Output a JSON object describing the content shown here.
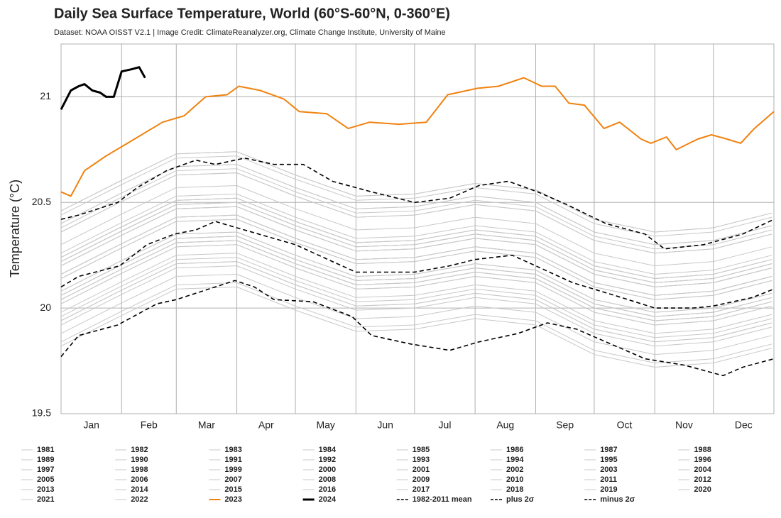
{
  "chart_data": {
    "type": "line",
    "title": "Daily Sea Surface Temperature, World (60°S-60°N, 0-360°E)",
    "subtitle": "Dataset: NOAA OISST V2.1 | Image Credit: ClimateReanalyzer.org, Climate Change Institute, University of Maine",
    "y_label": "Temperature (°C)",
    "xlim": [
      1,
      366
    ],
    "ylim": [
      19.5,
      21.25
    ],
    "yticks": [
      19.5,
      20,
      20.5,
      21
    ],
    "xticks": [
      {
        "value": 16.5,
        "label": "Jan"
      },
      {
        "value": 46,
        "label": "Feb"
      },
      {
        "value": 75.5,
        "label": "Mar"
      },
      {
        "value": 106,
        "label": "Apr"
      },
      {
        "value": 136.5,
        "label": "May"
      },
      {
        "value": 167,
        "label": "Jun"
      },
      {
        "value": 197.5,
        "label": "Jul"
      },
      {
        "value": 228.5,
        "label": "Aug"
      },
      {
        "value": 259,
        "label": "Sep"
      },
      {
        "value": 289.5,
        "label": "Oct"
      },
      {
        "value": 320,
        "label": "Nov"
      },
      {
        "value": 350.5,
        "label": "Dec"
      }
    ],
    "xgrid": [
      32,
      60,
      91,
      121,
      152,
      182,
      213,
      244,
      274,
      305,
      335
    ],
    "grid": true,
    "x": [
      1,
      31,
      60,
      91,
      121,
      152,
      182,
      213,
      244,
      274,
      305,
      335,
      365
    ],
    "series": [
      {
        "name": "1981",
        "color": "#c8c8c8",
        "values": [
          19.88,
          20.02,
          20.15,
          20.16,
          20.05,
          19.95,
          19.96,
          20.01,
          19.98,
          19.84,
          19.78,
          19.8,
          19.87
        ]
      },
      {
        "name": "1982",
        "color": "#c8c8c8",
        "values": [
          19.92,
          20.06,
          20.19,
          20.2,
          20.09,
          19.99,
          20.0,
          20.05,
          20.02,
          19.88,
          19.82,
          19.84,
          19.91
        ]
      },
      {
        "name": "1983",
        "color": "#c8c8c8",
        "values": [
          20.02,
          20.16,
          20.29,
          20.3,
          20.19,
          20.09,
          20.1,
          20.15,
          20.12,
          19.98,
          19.92,
          19.94,
          20.01
        ]
      },
      {
        "name": "1984",
        "color": "#c8c8c8",
        "values": [
          19.84,
          19.98,
          20.11,
          20.12,
          20.01,
          19.91,
          19.92,
          19.97,
          19.94,
          19.8,
          19.74,
          19.76,
          19.83
        ]
      },
      {
        "name": "1985",
        "color": "#c8c8c8",
        "values": [
          19.82,
          19.96,
          20.09,
          20.1,
          19.99,
          19.89,
          19.9,
          19.95,
          19.92,
          19.78,
          19.72,
          19.74,
          19.81
        ]
      },
      {
        "name": "1986",
        "color": "#c8c8c8",
        "values": [
          19.94,
          20.08,
          20.21,
          20.22,
          20.11,
          20.01,
          20.02,
          20.07,
          20.04,
          19.9,
          19.84,
          19.86,
          19.93
        ]
      },
      {
        "name": "1987",
        "color": "#c8c8c8",
        "values": [
          20.08,
          20.22,
          20.35,
          20.36,
          20.25,
          20.15,
          20.16,
          20.21,
          20.18,
          20.04,
          19.98,
          20.0,
          20.07
        ]
      },
      {
        "name": "1988",
        "color": "#c8c8c8",
        "values": [
          20.04,
          20.18,
          20.31,
          20.32,
          20.21,
          20.11,
          20.12,
          20.17,
          20.14,
          20.0,
          19.94,
          19.96,
          20.03
        ]
      },
      {
        "name": "1989",
        "color": "#c8c8c8",
        "values": [
          19.94,
          20.08,
          20.21,
          20.22,
          20.11,
          20.01,
          20.02,
          20.07,
          20.04,
          19.9,
          19.84,
          19.86,
          19.93
        ]
      },
      {
        "name": "1990",
        "color": "#c8c8c8",
        "values": [
          20.04,
          20.18,
          20.31,
          20.32,
          20.21,
          20.11,
          20.12,
          20.17,
          20.14,
          20.0,
          19.94,
          19.96,
          20.03
        ]
      },
      {
        "name": "1991",
        "color": "#c8c8c8",
        "values": [
          20.06,
          20.2,
          20.33,
          20.34,
          20.23,
          20.13,
          20.14,
          20.19,
          20.16,
          20.02,
          19.96,
          19.98,
          20.05
        ]
      },
      {
        "name": "1992",
        "color": "#c8c8c8",
        "values": [
          19.96,
          20.1,
          20.23,
          20.24,
          20.13,
          20.03,
          20.04,
          20.09,
          20.06,
          19.92,
          19.86,
          19.88,
          19.95
        ]
      },
      {
        "name": "1993",
        "color": "#c8c8c8",
        "values": [
          19.98,
          20.12,
          20.25,
          20.26,
          20.15,
          20.05,
          20.06,
          20.11,
          20.08,
          19.94,
          19.88,
          19.9,
          19.97
        ]
      },
      {
        "name": "1994",
        "color": "#c8c8c8",
        "values": [
          20.04,
          20.18,
          20.31,
          20.32,
          20.21,
          20.11,
          20.12,
          20.17,
          20.14,
          20.0,
          19.94,
          19.96,
          20.03
        ]
      },
      {
        "name": "1995",
        "color": "#c8c8c8",
        "values": [
          20.06,
          20.2,
          20.33,
          20.34,
          20.23,
          20.13,
          20.14,
          20.19,
          20.16,
          20.02,
          19.96,
          19.98,
          20.05
        ]
      },
      {
        "name": "1996",
        "color": "#c8c8c8",
        "values": [
          20.02,
          20.16,
          20.29,
          20.3,
          20.19,
          20.09,
          20.1,
          20.15,
          20.12,
          19.98,
          19.92,
          19.94,
          20.01
        ]
      },
      {
        "name": "1997",
        "color": "#c8c8c8",
        "values": [
          20.16,
          20.3,
          20.43,
          20.44,
          20.33,
          20.23,
          20.24,
          20.29,
          20.26,
          20.12,
          20.06,
          20.08,
          20.15
        ]
      },
      {
        "name": "1998",
        "color": "#c8c8c8",
        "values": [
          20.22,
          20.36,
          20.49,
          20.5,
          20.39,
          20.29,
          20.3,
          20.35,
          20.32,
          20.18,
          20.12,
          20.14,
          20.21
        ]
      },
      {
        "name": "1999",
        "color": "#c8c8c8",
        "values": [
          20.06,
          20.2,
          20.33,
          20.34,
          20.23,
          20.13,
          20.14,
          20.19,
          20.16,
          20.02,
          19.96,
          19.98,
          20.05
        ]
      },
      {
        "name": "2000",
        "color": "#c8c8c8",
        "values": [
          20.08,
          20.22,
          20.35,
          20.36,
          20.25,
          20.15,
          20.16,
          20.21,
          20.18,
          20.04,
          19.98,
          20.0,
          20.07
        ]
      },
      {
        "name": "2001",
        "color": "#c8c8c8",
        "values": [
          20.16,
          20.3,
          20.43,
          20.44,
          20.33,
          20.23,
          20.24,
          20.29,
          20.26,
          20.12,
          20.06,
          20.08,
          20.15
        ]
      },
      {
        "name": "2002",
        "color": "#c8c8c8",
        "values": [
          20.2,
          20.34,
          20.47,
          20.48,
          20.37,
          20.27,
          20.28,
          20.33,
          20.3,
          20.16,
          20.1,
          20.12,
          20.19
        ]
      },
      {
        "name": "2003",
        "color": "#c8c8c8",
        "values": [
          20.22,
          20.36,
          20.49,
          20.5,
          20.39,
          20.29,
          20.3,
          20.35,
          20.32,
          20.18,
          20.12,
          20.14,
          20.21
        ]
      },
      {
        "name": "2004",
        "color": "#c8c8c8",
        "values": [
          20.2,
          20.34,
          20.47,
          20.48,
          20.37,
          20.27,
          20.28,
          20.33,
          20.3,
          20.16,
          20.1,
          20.12,
          20.19
        ]
      },
      {
        "name": "2005",
        "color": "#c8c8c8",
        "values": [
          20.24,
          20.38,
          20.51,
          20.52,
          20.41,
          20.31,
          20.32,
          20.37,
          20.34,
          20.2,
          20.14,
          20.16,
          20.23
        ]
      },
      {
        "name": "2006",
        "color": "#c8c8c8",
        "values": [
          20.2,
          20.34,
          20.47,
          20.48,
          20.37,
          20.27,
          20.28,
          20.33,
          20.3,
          20.16,
          20.1,
          20.12,
          20.19
        ]
      },
      {
        "name": "2007",
        "color": "#c8c8c8",
        "values": [
          20.14,
          20.28,
          20.41,
          20.42,
          20.31,
          20.21,
          20.22,
          20.27,
          20.24,
          20.1,
          20.04,
          20.06,
          20.13
        ]
      },
      {
        "name": "2008",
        "color": "#c8c8c8",
        "values": [
          20.14,
          20.28,
          20.41,
          20.42,
          20.31,
          20.21,
          20.22,
          20.27,
          20.24,
          20.1,
          20.04,
          20.06,
          20.13
        ]
      },
      {
        "name": "2009",
        "color": "#c8c8c8",
        "values": [
          20.24,
          20.38,
          20.51,
          20.52,
          20.41,
          20.31,
          20.32,
          20.37,
          20.34,
          20.2,
          20.14,
          20.16,
          20.23
        ]
      },
      {
        "name": "2010",
        "color": "#c8c8c8",
        "values": [
          20.26,
          20.4,
          20.53,
          20.54,
          20.43,
          20.33,
          20.34,
          20.39,
          20.36,
          20.22,
          20.16,
          20.18,
          20.25
        ]
      },
      {
        "name": "2011",
        "color": "#c8c8c8",
        "values": [
          20.16,
          20.3,
          20.43,
          20.44,
          20.33,
          20.23,
          20.24,
          20.29,
          20.26,
          20.12,
          20.06,
          20.08,
          20.15
        ]
      },
      {
        "name": "2012",
        "color": "#c8c8c8",
        "values": [
          20.22,
          20.36,
          20.49,
          20.5,
          20.39,
          20.29,
          20.3,
          20.35,
          20.32,
          20.18,
          20.12,
          20.14,
          20.21
        ]
      },
      {
        "name": "2013",
        "color": "#c8c8c8",
        "values": [
          20.24,
          20.38,
          20.51,
          20.52,
          20.41,
          20.31,
          20.32,
          20.37,
          20.34,
          20.2,
          20.14,
          20.16,
          20.23
        ]
      },
      {
        "name": "2014",
        "color": "#c8c8c8",
        "values": [
          20.3,
          20.44,
          20.57,
          20.58,
          20.47,
          20.37,
          20.38,
          20.43,
          20.4,
          20.26,
          20.2,
          20.22,
          20.29
        ]
      },
      {
        "name": "2015",
        "color": "#c8c8c8",
        "values": [
          20.4,
          20.54,
          20.67,
          20.68,
          20.57,
          20.47,
          20.48,
          20.53,
          20.5,
          20.36,
          20.3,
          20.32,
          20.39
        ]
      },
      {
        "name": "2016",
        "color": "#c8c8c8",
        "values": [
          20.46,
          20.6,
          20.73,
          20.74,
          20.63,
          20.53,
          20.54,
          20.59,
          20.56,
          20.42,
          20.36,
          20.38,
          20.45
        ]
      },
      {
        "name": "2017",
        "color": "#c8c8c8",
        "values": [
          20.4,
          20.54,
          20.67,
          20.68,
          20.57,
          20.47,
          20.48,
          20.53,
          20.5,
          20.36,
          20.3,
          20.32,
          20.39
        ]
      },
      {
        "name": "2018",
        "color": "#c8c8c8",
        "values": [
          20.36,
          20.5,
          20.63,
          20.64,
          20.53,
          20.43,
          20.44,
          20.49,
          20.46,
          20.32,
          20.26,
          20.28,
          20.35
        ]
      },
      {
        "name": "2019",
        "color": "#c8c8c8",
        "values": [
          20.44,
          20.58,
          20.71,
          20.72,
          20.61,
          20.51,
          20.52,
          20.57,
          20.54,
          20.4,
          20.34,
          20.36,
          20.43
        ]
      },
      {
        "name": "2020",
        "color": "#c8c8c8",
        "values": [
          20.46,
          20.6,
          20.73,
          20.74,
          20.63,
          20.53,
          20.54,
          20.59,
          20.56,
          20.42,
          20.36,
          20.38,
          20.45
        ]
      },
      {
        "name": "2021",
        "color": "#c8c8c8",
        "values": [
          20.36,
          20.5,
          20.63,
          20.64,
          20.53,
          20.43,
          20.44,
          20.49,
          20.46,
          20.32,
          20.26,
          20.28,
          20.35
        ]
      },
      {
        "name": "2022",
        "color": "#c8c8c8",
        "values": [
          20.38,
          20.52,
          20.65,
          20.66,
          20.55,
          20.45,
          20.46,
          20.51,
          20.48,
          20.34,
          20.28,
          20.3,
          20.37
        ]
      },
      {
        "name": "2023",
        "color": "#f0820f",
        "linewidth": 2,
        "x": [
          1,
          6,
          13,
          24,
          35,
          53,
          64,
          75,
          86,
          92,
          103,
          115,
          123,
          137,
          148,
          159,
          174,
          188,
          199,
          214,
          225,
          238,
          247,
          254,
          261,
          269,
          279,
          287,
          298,
          303,
          311,
          316,
          327,
          334,
          342,
          349,
          356,
          366
        ],
        "values": [
          20.55,
          20.53,
          20.65,
          20.72,
          20.78,
          20.88,
          20.91,
          21.0,
          21.01,
          21.05,
          21.03,
          20.99,
          20.93,
          20.92,
          20.85,
          20.88,
          20.87,
          20.88,
          21.01,
          21.04,
          21.05,
          21.09,
          21.05,
          21.05,
          20.97,
          20.96,
          20.85,
          20.88,
          20.8,
          20.78,
          20.81,
          20.75,
          20.8,
          20.82,
          20.8,
          20.78,
          20.85,
          20.93
        ]
      },
      {
        "name": "2024",
        "color": "#000000",
        "linewidth": 3,
        "x": [
          1,
          6,
          10,
          13,
          17,
          21,
          24,
          28,
          32,
          37,
          41,
          44
        ],
        "values": [
          20.94,
          21.03,
          21.05,
          21.06,
          21.03,
          21.02,
          21.0,
          21.0,
          21.12,
          21.13,
          21.14,
          21.09
        ]
      },
      {
        "name": "1982-2011 mean",
        "color": "#000000",
        "linewidth": 1.6,
        "dash": "dashed",
        "x": [
          1,
          10,
          31,
          45,
          59,
          70,
          80,
          91,
          121,
          140,
          152,
          182,
          200,
          213,
          232,
          244,
          263,
          288,
          305,
          325,
          335,
          355,
          366
        ],
        "values": [
          20.1,
          20.15,
          20.2,
          20.3,
          20.35,
          20.37,
          20.41,
          20.38,
          20.3,
          20.22,
          20.17,
          20.17,
          20.2,
          20.23,
          20.25,
          20.2,
          20.12,
          20.05,
          20.0,
          20.0,
          20.01,
          20.05,
          20.09
        ]
      },
      {
        "name": "plus 2σ",
        "color": "#000000",
        "linewidth": 1.6,
        "dash": "dashed",
        "x": [
          1,
          10,
          30,
          40,
          55,
          70,
          80,
          95,
          110,
          125,
          140,
          160,
          182,
          200,
          215,
          230,
          245,
          260,
          280,
          300,
          310,
          330,
          350,
          366
        ],
        "values": [
          20.42,
          20.44,
          20.5,
          20.57,
          20.65,
          20.7,
          20.68,
          20.71,
          20.68,
          20.68,
          20.6,
          20.55,
          20.5,
          20.52,
          20.58,
          20.6,
          20.55,
          20.49,
          20.4,
          20.35,
          20.28,
          20.3,
          20.35,
          20.42
        ]
      },
      {
        "name": "minus 2σ",
        "color": "#000000",
        "linewidth": 1.6,
        "dash": "dashed",
        "x": [
          1,
          10,
          30,
          50,
          60,
          70,
          90,
          100,
          110,
          130,
          150,
          160,
          180,
          200,
          215,
          235,
          250,
          265,
          280,
          300,
          320,
          340,
          350,
          366
        ],
        "values": [
          19.77,
          19.87,
          19.92,
          20.02,
          20.04,
          20.07,
          20.13,
          20.1,
          20.04,
          20.03,
          19.96,
          19.87,
          19.83,
          19.8,
          19.84,
          19.88,
          19.93,
          19.9,
          19.84,
          19.76,
          19.73,
          19.68,
          19.72,
          19.76
        ]
      }
    ]
  }
}
